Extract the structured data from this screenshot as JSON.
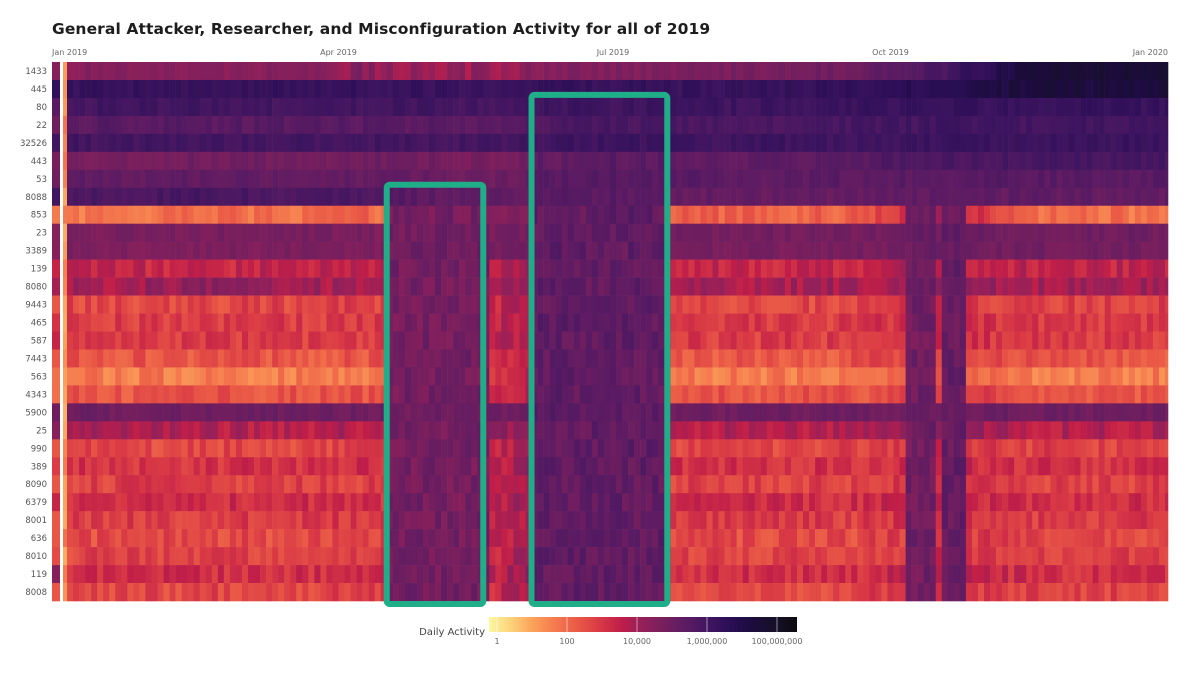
{
  "chart_data": {
    "type": "heatmap",
    "title": "General Attacker, Researcher, and Misconfiguration Activity for all of 2019",
    "x_ticks": [
      {
        "date": "2019-01-01",
        "label": "Jan 2019"
      },
      {
        "date": "2019-04-01",
        "label": "Apr 2019"
      },
      {
        "date": "2019-07-01",
        "label": "Jul 2019"
      },
      {
        "date": "2019-10-01",
        "label": "Oct 2019"
      },
      {
        "date": "2020-01-01",
        "label": "Jan 2020"
      }
    ],
    "x_range": [
      "2019-01-01",
      "2020-01-01"
    ],
    "ports": [
      "1433",
      "445",
      "80",
      "22",
      "32526",
      "443",
      "53",
      "8088",
      "853",
      "23",
      "3389",
      "139",
      "8080",
      "9443",
      "465",
      "587",
      "7443",
      "563",
      "4343",
      "5900",
      "25",
      "990",
      "389",
      "8090",
      "6379",
      "8001",
      "636",
      "8010",
      "119",
      "8008"
    ],
    "color_scale": {
      "label": "Daily Activity",
      "scale": "log",
      "range": [
        1,
        300000000
      ],
      "ticks": [
        {
          "value": 1,
          "label": "1"
        },
        {
          "value": 100,
          "label": "100"
        },
        {
          "value": 10000,
          "label": "10,000"
        },
        {
          "value": 1000000,
          "label": "1,000,000"
        },
        {
          "value": 100000000,
          "label": "100,000,000"
        }
      ],
      "colors": [
        "#fbf8a0",
        "#fcd27a",
        "#fba15a",
        "#f47a4e",
        "#ea5a46",
        "#d93a45",
        "#c01e48",
        "#93205a",
        "#751f5e",
        "#5a1b63",
        "#3f1560",
        "#2a0e55",
        "#1c0c3d",
        "#161028",
        "#0c0a0e"
      ]
    },
    "overall_log10": [
      4.5,
      6.5,
      5.5,
      5.0,
      6.0,
      4.8,
      5.0,
      6.0,
      1.8,
      4.5,
      4.5,
      3.5,
      4.0,
      2.5,
      3.2,
      3.5,
      2.5,
      2.0,
      2.0,
      5.0,
      4.5,
      2.5,
      3.0,
      2.5,
      3.5,
      2.5,
      2.5,
      2.7,
      4.5,
      2.5
    ],
    "monthly_log10": [
      [
        4.5,
        4.5,
        4.6,
        4.3,
        4.2,
        4.6,
        4.7,
        4.8,
        5.0,
        5.8,
        7.5,
        7.5
      ],
      [
        6.3,
        6.3,
        6.3,
        6.3,
        6.2,
        6.3,
        6.3,
        6.3,
        6.4,
        6.8,
        7.3,
        7.3
      ],
      [
        6.0,
        6.0,
        6.0,
        6.0,
        5.9,
        6.1,
        6.1,
        6.1,
        6.2,
        6.3,
        6.3,
        6.3
      ],
      [
        5.5,
        5.5,
        5.5,
        5.5,
        5.4,
        5.8,
        5.8,
        5.8,
        5.9,
        6.0,
        6.0,
        6.0
      ],
      [
        6.0,
        6.0,
        6.0,
        6.0,
        5.9,
        6.1,
        6.1,
        6.1,
        6.1,
        6.2,
        6.2,
        6.2
      ],
      [
        4.9,
        4.9,
        5.0,
        5.0,
        4.8,
        5.2,
        5.3,
        5.3,
        5.5,
        5.8,
        5.9,
        5.9
      ],
      [
        5.3,
        5.3,
        5.3,
        5.2,
        5.0,
        5.5,
        5.5,
        5.4,
        5.4,
        5.5,
        5.5,
        5.5
      ],
      [
        5.8,
        5.8,
        5.8,
        5.6,
        5.2,
        5.4,
        5.3,
        5.2,
        5.2,
        5.3,
        5.3,
        5.3
      ],
      [
        2.0,
        2.0,
        2.0,
        2.2,
        4.5,
        5.0,
        2.5,
        2.2,
        2.3,
        4.0,
        2.0,
        2.0
      ],
      [
        4.8,
        4.8,
        4.8,
        4.7,
        4.8,
        5.0,
        4.9,
        4.9,
        4.9,
        5.0,
        5.0,
        5.0
      ],
      [
        4.7,
        4.7,
        4.7,
        4.7,
        4.8,
        5.0,
        4.9,
        4.8,
        4.8,
        5.0,
        4.9,
        4.9
      ],
      [
        3.5,
        3.5,
        3.5,
        3.5,
        3.7,
        4.8,
        3.6,
        3.5,
        3.5,
        3.8,
        3.6,
        3.6
      ],
      [
        4.0,
        4.3,
        4.0,
        4.0,
        4.0,
        4.8,
        4.0,
        4.0,
        4.0,
        4.2,
        4.0,
        4.0
      ],
      [
        2.8,
        2.8,
        2.8,
        2.9,
        3.2,
        4.8,
        2.9,
        2.8,
        2.8,
        3.2,
        2.9,
        2.9
      ],
      [
        3.0,
        3.0,
        3.0,
        3.1,
        3.3,
        4.8,
        3.0,
        3.0,
        3.0,
        3.4,
        3.0,
        3.0
      ],
      [
        3.0,
        3.0,
        3.0,
        3.1,
        3.3,
        4.8,
        3.0,
        3.0,
        3.0,
        3.4,
        3.0,
        3.0
      ],
      [
        2.5,
        2.5,
        2.5,
        2.6,
        3.0,
        4.8,
        2.5,
        2.5,
        2.5,
        3.0,
        2.5,
        2.5
      ],
      [
        1.8,
        1.8,
        1.8,
        2.0,
        2.8,
        4.8,
        1.9,
        1.8,
        1.8,
        2.5,
        1.8,
        1.8
      ],
      [
        2.5,
        2.5,
        2.5,
        2.6,
        3.0,
        4.8,
        2.5,
        2.5,
        2.5,
        3.0,
        2.5,
        2.5
      ],
      [
        5.0,
        5.0,
        5.0,
        5.0,
        5.0,
        5.2,
        5.0,
        5.0,
        5.0,
        5.1,
        5.0,
        5.0
      ],
      [
        3.8,
        3.8,
        3.8,
        3.8,
        4.0,
        4.8,
        3.8,
        3.8,
        3.8,
        4.2,
        3.8,
        3.8
      ],
      [
        2.8,
        2.8,
        2.8,
        2.9,
        3.2,
        4.8,
        2.9,
        2.8,
        2.8,
        3.2,
        2.9,
        2.9
      ],
      [
        3.2,
        3.2,
        3.2,
        3.3,
        3.5,
        4.8,
        3.2,
        3.2,
        3.2,
        3.5,
        3.2,
        3.2
      ],
      [
        2.9,
        2.9,
        2.9,
        3.0,
        3.3,
        4.8,
        2.9,
        2.9,
        2.9,
        3.3,
        2.9,
        2.9
      ],
      [
        3.3,
        3.3,
        3.3,
        3.3,
        3.5,
        4.8,
        3.3,
        3.3,
        3.3,
        3.6,
        3.3,
        3.3
      ],
      [
        3.0,
        3.0,
        3.0,
        3.1,
        3.3,
        4.8,
        3.0,
        3.0,
        3.0,
        3.4,
        3.0,
        3.0
      ],
      [
        2.7,
        2.7,
        2.7,
        2.8,
        3.2,
        4.8,
        2.8,
        2.7,
        2.7,
        3.2,
        2.8,
        2.8
      ],
      [
        2.9,
        2.9,
        2.9,
        3.0,
        3.3,
        4.8,
        2.9,
        2.9,
        2.9,
        3.3,
        2.9,
        2.9
      ],
      [
        3.3,
        3.3,
        3.3,
        3.3,
        3.6,
        4.8,
        3.3,
        3.3,
        3.3,
        3.6,
        3.3,
        3.3
      ],
      [
        2.8,
        2.8,
        2.8,
        2.9,
        3.2,
        4.8,
        2.9,
        2.8,
        2.8,
        3.2,
        2.9,
        2.9
      ]
    ],
    "low_activity_periods": [
      {
        "start": "2019-04-17",
        "end": "2019-05-19",
        "from_port": "853",
        "log10": 4.9
      },
      {
        "start": "2019-06-04",
        "end": "2019-07-19",
        "from_port": "22",
        "log10": 5.3
      },
      {
        "start": "2019-10-06",
        "end": "2019-10-14",
        "from_port": "853",
        "log10": 5.0
      },
      {
        "start": "2019-10-17",
        "end": "2019-10-25",
        "from_port": "853",
        "log10": 5.2
      }
    ],
    "highlights": [
      {
        "start": "2019-04-17",
        "end": "2019-05-19",
        "from_port": "8088",
        "to_port": "8008",
        "color": "#1fae88"
      },
      {
        "start": "2019-06-04",
        "end": "2019-07-19",
        "from_port": "80",
        "to_port": "8008",
        "color": "#1fae88"
      }
    ]
  }
}
